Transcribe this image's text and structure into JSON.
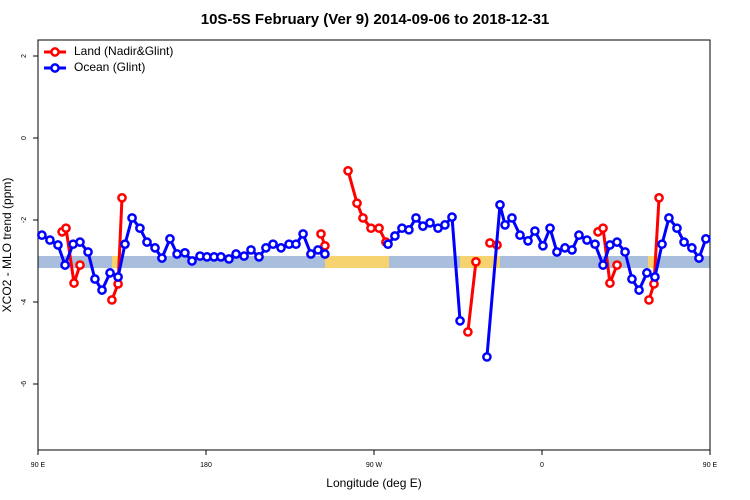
{
  "chart_data": {
    "type": "line",
    "title": "10S-5S February (Ver 9)   2014-09-06 to 2018-12-31",
    "x_label": "Longitude (deg E)",
    "y_label": "XCO2 - MLO trend (ppm)",
    "xlim": [
      90,
      450
    ],
    "ylim": [
      -7.61,
      2.39
    ],
    "xticks": [
      {
        "value": 90,
        "label": "90 E"
      },
      {
        "value": 180,
        "label": "180"
      },
      {
        "value": 270,
        "label": "90 W"
      },
      {
        "value": 360,
        "label": "0"
      },
      {
        "value": 450,
        "label": "90 E"
      }
    ],
    "yticks": [
      2,
      0,
      -2,
      -4,
      -6
    ],
    "legend": "topleft",
    "series": [
      {
        "name": "Land (Nadir&Glint)",
        "color": "#ff0000",
        "x": [
          102.9,
          105.0,
          109.3,
          112.5,
          121,
          129.6,
          132.9,
          135.0,
          190,
          241.6,
          243.7,
          250,
          256.1,
          260.9,
          264.1,
          268.4,
          272.7,
          276.4,
          300,
          320.3,
          324.6,
          328,
          332.1,
          335.9,
          360,
          390.0,
          392.7,
          396.4,
          400.2,
          410,
          417.3,
          420.0,
          422.7
        ],
        "values": [
          -2.29,
          -2.2,
          -3.54,
          -3.1,
          null,
          -3.95,
          -3.56,
          -1.46,
          null,
          -2.34,
          -2.63,
          null,
          -0.8,
          -1.59,
          -1.95,
          -2.2,
          -2.2,
          -2.54,
          null,
          -4.73,
          -3.02,
          null,
          -2.56,
          -2.61,
          null,
          -2.29,
          -2.2,
          -3.54,
          -3.1,
          null,
          -3.95,
          -3.56,
          -1.46
        ]
      },
      {
        "name": "Ocean (Glint)",
        "color": "#0000ff",
        "x": [
          92.1,
          96.4,
          100.7,
          104.5,
          108.8,
          112.5,
          116.8,
          120.5,
          124.3,
          128.6,
          132.9,
          136.6,
          140.4,
          144.6,
          148.4,
          152.7,
          156.4,
          160.7,
          164.5,
          168.7,
          172.5,
          176.8,
          180.5,
          184.3,
          188.0,
          192.3,
          196.1,
          200.4,
          204.1,
          208.4,
          212.1,
          215.9,
          220.2,
          224.5,
          228.2,
          232.0,
          236.2,
          240.0,
          243.7,
          260,
          277.5,
          281.2,
          285.0,
          288.7,
          292.5,
          296.2,
          300.0,
          304.3,
          308.0,
          311.8,
          316.1,
          322,
          330.5,
          337.5,
          340.2,
          343.9,
          348.2,
          352.5,
          356.2,
          360.5,
          364.3,
          368.0,
          372.3,
          376.1,
          379.8,
          384.1,
          388.4,
          392.7,
          396.4,
          400.2,
          404.5,
          408.2,
          412.0,
          416.2,
          420.5,
          424.3,
          428.0,
          432.3,
          436.1,
          440.3,
          444.1,
          447.8
        ],
        "values": [
          -2.37,
          -2.49,
          -2.61,
          -3.1,
          -2.59,
          -2.54,
          -2.78,
          -3.44,
          -3.71,
          -3.29,
          -3.39,
          -2.59,
          -1.95,
          -2.2,
          -2.54,
          -2.68,
          -2.93,
          -2.46,
          -2.83,
          -2.8,
          -3.0,
          -2.88,
          -2.9,
          -2.9,
          -2.9,
          -2.95,
          -2.83,
          -2.88,
          -2.73,
          -2.9,
          -2.68,
          -2.59,
          -2.68,
          -2.59,
          -2.59,
          -2.34,
          -2.83,
          -2.73,
          -2.83,
          null,
          -2.59,
          -2.39,
          -2.2,
          -2.24,
          -1.95,
          -2.15,
          -2.07,
          -2.2,
          -2.12,
          -1.93,
          -4.46,
          null,
          -5.34,
          -1.63,
          -2.12,
          -1.95,
          -2.37,
          -2.51,
          -2.27,
          -2.63,
          -2.2,
          -2.78,
          -2.68,
          -2.73,
          -2.37,
          -2.49,
          -2.59,
          -3.1,
          -2.61,
          -2.54,
          -2.78,
          -3.44,
          -3.71,
          -3.29,
          -3.39,
          -2.59,
          -1.95,
          -2.2,
          -2.54,
          -2.68,
          -2.93,
          -2.46
        ]
      }
    ]
  }
}
